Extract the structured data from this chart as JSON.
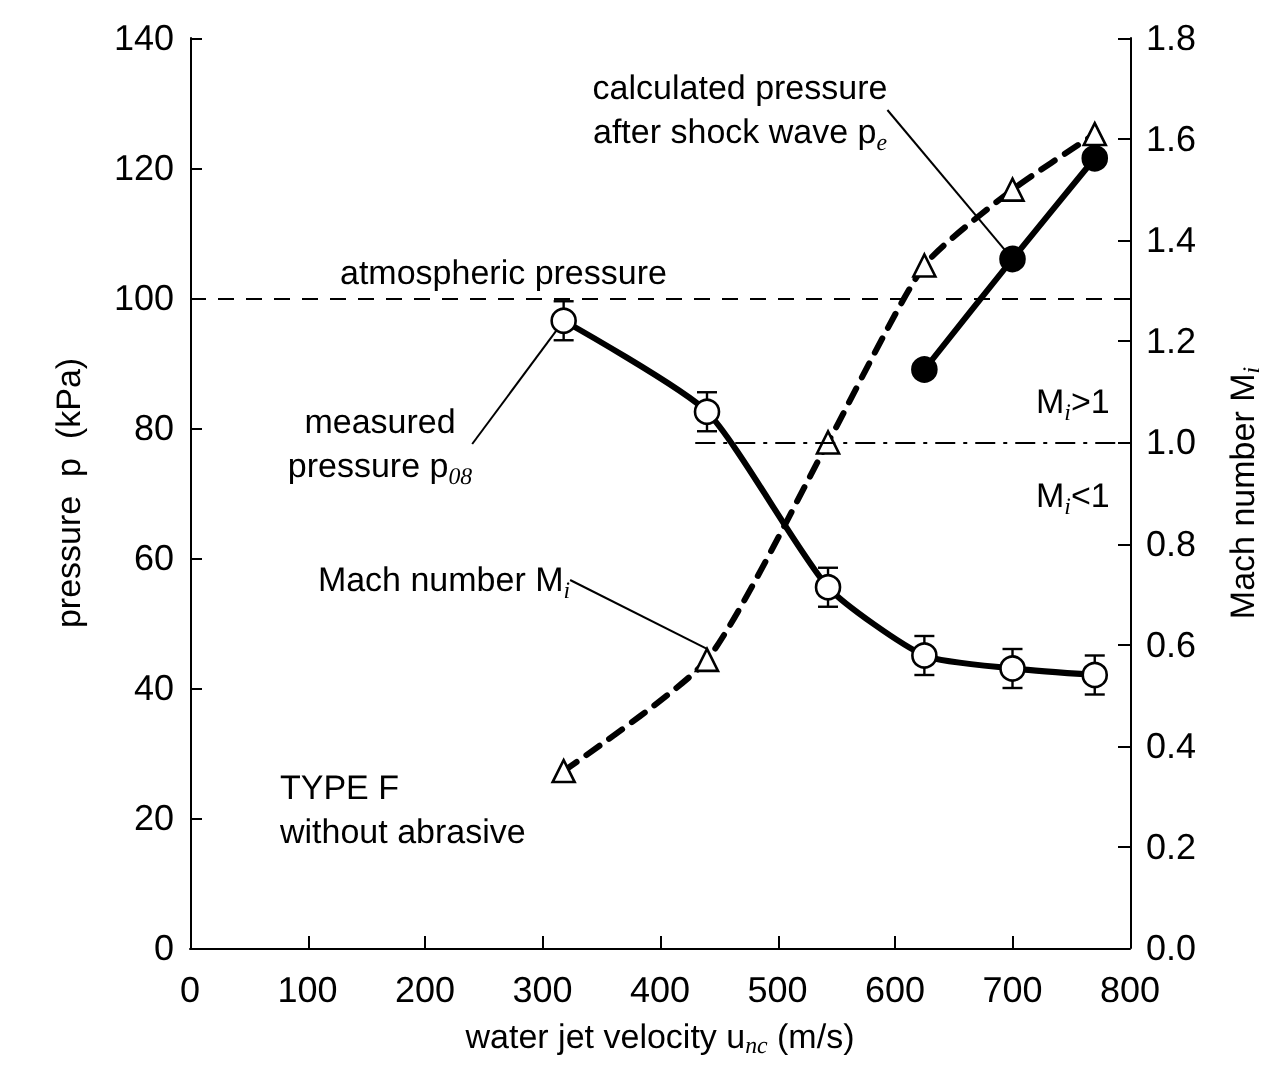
{
  "chart_data": {
    "type": "line",
    "xlabel": "water jet velocity u$_{nc}$ (m/s)",
    "ylabel": "pressure  p  (kPa)",
    "y2label": "Mach number M$_{i}$",
    "xlim": [
      0,
      800
    ],
    "xticks": [
      0,
      100,
      200,
      300,
      400,
      500,
      600,
      700,
      800
    ],
    "ylim": [
      0,
      140
    ],
    "yticks": [
      0,
      20,
      40,
      60,
      80,
      100,
      120,
      140
    ],
    "y2lim": [
      0,
      1.8
    ],
    "y2ticks": [
      {
        "value": 0,
        "label": "0.0"
      },
      0.2,
      0.4,
      0.6,
      0.8,
      {
        "value": 1,
        "label": "1.0"
      },
      1.2,
      1.4,
      1.6,
      1.8
    ],
    "grid": false,
    "legend": false,
    "series": [
      {
        "name": "measured pressure p$_{08}$",
        "color": "#000000",
        "marker": "circle",
        "line_style": "solid",
        "x": [
          318,
          440,
          543,
          625,
          700,
          770
        ],
        "values": [
          96.5,
          82.5,
          55.5,
          45,
          43,
          42
        ],
        "errors": [
          3,
          3,
          3,
          3,
          3,
          3
        ]
      },
      {
        "name": "Mach number M$_{i}$",
        "color": "#000000",
        "marker": "triangle",
        "line_style": "dashed",
        "axis": "y2",
        "x": [
          318,
          440,
          543,
          625,
          700,
          770
        ],
        "values": [
          0.35,
          0.57,
          1.0,
          1.35,
          1.5,
          1.61
        ]
      },
      {
        "name": "calculated pressure after shock wave p$_{e}$",
        "color": "#000000",
        "marker": "circle",
        "line_style": "solid",
        "x": [
          625,
          700,
          770
        ],
        "values": [
          89,
          106,
          121.5
        ]
      }
    ],
    "ref_lines": [
      {
        "axis": "y",
        "value": 100,
        "label": "atmospheric pressure",
        "line_style": "dashed"
      },
      {
        "axis": "y2",
        "value": 1.0,
        "label": null,
        "line_style": "dashdot"
      }
    ],
    "annotations": [
      "TYPE F\nwithout abrasive",
      "M$_{i}$>1",
      "M$_{i}$<1"
    ]
  }
}
